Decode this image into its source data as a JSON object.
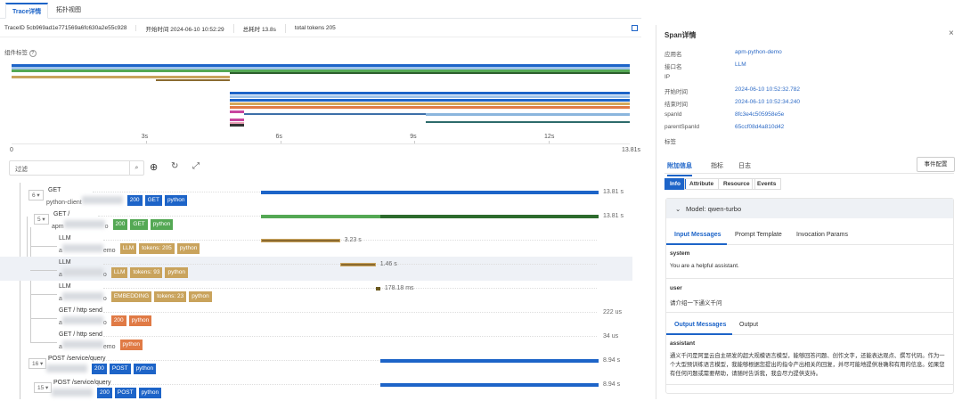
{
  "tabs": [
    "Trace详情",
    "拓扑视图"
  ],
  "info": {
    "trace_id": "TraceID 5cb969ad1e771569a6fc630a2e55c928",
    "start": "开始时间 2024-06-10 10:52:29",
    "total": "总耗时 13.8s",
    "tokens": "total tokens 205"
  },
  "minimap_label": "组件标签",
  "total_seconds": 13.81,
  "minimap": [
    {
      "s": 0,
      "e": 13.81,
      "c": "#1d64c8"
    },
    {
      "s": 0,
      "e": 13.81,
      "c": "#9fc3ea"
    },
    {
      "s": 0,
      "e": 13.81,
      "c": "#54a854"
    },
    {
      "s": 4.88,
      "e": 13.81,
      "c": "#2d5f2d"
    },
    {
      "s": 0,
      "e": 4.88,
      "c": "#c9a35c"
    },
    {
      "s": 3.23,
      "e": 4.88,
      "c": "#8a6a30"
    },
    {
      "s": 4.88,
      "e": 13.81,
      "c": "#1d64c8"
    },
    {
      "s": 4.88,
      "e": 13.81,
      "c": "#9fc3ea"
    },
    {
      "s": 4.88,
      "e": 13.81,
      "c": "#1d64c8"
    },
    {
      "s": 4.88,
      "e": 13.81,
      "c": "#d4a95c"
    },
    {
      "s": 4.88,
      "e": 13.81,
      "c": "#e07a45"
    },
    {
      "s": 4.88,
      "e": 5.2,
      "c": "#c8459f"
    },
    {
      "s": 5.2,
      "e": 9.25,
      "c": "#3d6fa8"
    },
    {
      "s": 9.25,
      "e": 13.81,
      "c": "#8bb6dd"
    },
    {
      "s": 4.88,
      "e": 5.2,
      "c": "#c8459f"
    },
    {
      "s": 9.25,
      "e": 13.81,
      "c": "#2d6b6b"
    },
    {
      "s": 4.88,
      "e": 5.2,
      "c": "#e8a0b5"
    },
    {
      "s": 4.88,
      "e": 5.2,
      "c": "#333333"
    }
  ],
  "axis": {
    "ticks": [
      "3s",
      "6s",
      "9s",
      "12s"
    ],
    "tick_values": [
      3,
      6,
      9,
      12
    ],
    "start": "0",
    "end": "13.81s"
  },
  "filter_placeholder": "过滤",
  "spans": [
    {
      "count": "6",
      "name": "GET",
      "svc": "python-client",
      "tags": [
        {
          "t": "200",
          "c": "#1d64c8"
        },
        {
          "t": "GET",
          "c": "#1d64c8"
        },
        {
          "t": "python",
          "c": "#1d64c8"
        }
      ],
      "start": 0,
      "dur": 13.81,
      "color": "#1d64c8",
      "dur_label": "13.81 s",
      "indent": 0
    },
    {
      "count": "5",
      "name": "GET /",
      "svc": "apm",
      "svc_end": "o",
      "tags": [
        {
          "t": "200",
          "c": "#54a854"
        },
        {
          "t": "GET",
          "c": "#54a854"
        },
        {
          "t": "python",
          "c": "#54a854"
        }
      ],
      "start": 0,
      "dur": 13.81,
      "color": "#54a854",
      "dark": "#2d6b2d",
      "dark_start": 4.88,
      "dur_label": "13.81 s",
      "indent": 1
    },
    {
      "name": "LLM",
      "svc": "a",
      "svc_end": "emo",
      "tags": [
        {
          "t": "LLM",
          "c": "#c9a35c"
        },
        {
          "t": "tokens: 205",
          "c": "#c9a35c"
        },
        {
          "t": "python",
          "c": "#c9a35c"
        }
      ],
      "start": 0,
      "dur": 3.23,
      "color": "#8a6a30",
      "dur_label": "3.23 s",
      "indent": 2
    },
    {
      "name": "LLM",
      "svc": "a",
      "svc_end": "o",
      "tags": [
        {
          "t": "LLM",
          "c": "#c9a35c"
        },
        {
          "t": "tokens: 93",
          "c": "#c9a35c"
        },
        {
          "t": "python",
          "c": "#c9a35c"
        }
      ],
      "start": 3.23,
      "dur": 1.46,
      "color": "#8a6a30",
      "dur_label": "1.46 s",
      "indent": 2,
      "selected": true
    },
    {
      "name": "LLM",
      "svc": "a",
      "svc_end": "o",
      "tags": [
        {
          "t": "EMBEDDING",
          "c": "#c9a35c"
        },
        {
          "t": "tokens: 23",
          "c": "#c9a35c"
        },
        {
          "t": "python",
          "c": "#c9a35c"
        }
      ],
      "start": 4.7,
      "dur": 0.17818,
      "color": "#6b5a20",
      "dur_label": "178.18 ms",
      "indent": 2
    },
    {
      "name": "GET / http send",
      "svc": "a",
      "svc_end": "o",
      "tags": [
        {
          "t": "200",
          "c": "#e07a45"
        },
        {
          "t": "python",
          "c": "#e07a45"
        }
      ],
      "start": null,
      "dur": 0,
      "color": "#e07a45",
      "dur_label": "222 us",
      "indent": 2
    },
    {
      "name": "GET / http send",
      "svc": "a",
      "svc_end": "emo",
      "tags": [
        {
          "t": "python",
          "c": "#e07a45"
        }
      ],
      "start": null,
      "dur": 0,
      "color": "#e07a45",
      "dur_label": "34 us",
      "indent": 2
    },
    {
      "count": "16",
      "name": "POST /service/query",
      "svc": "",
      "svc_end": "",
      "tags": [
        {
          "t": "200",
          "c": "#1d64c8"
        },
        {
          "t": "POST",
          "c": "#1d64c8"
        },
        {
          "t": "python",
          "c": "#1d64c8"
        }
      ],
      "start": 4.88,
      "dur": 8.94,
      "color": "#1d64c8",
      "dur_label": "8.94 s",
      "indent": 0
    },
    {
      "count": "15",
      "name": "POST /service/query",
      "svc": "",
      "svc_end": "",
      "tags": [
        {
          "t": "200",
          "c": "#1d64c8"
        },
        {
          "t": "POST",
          "c": "#1d64c8"
        },
        {
          "t": "python",
          "c": "#1d64c8"
        }
      ],
      "start": 4.88,
      "dur": 8.94,
      "color": "#1d64c8",
      "dur_label": "8.94 s",
      "indent": 1
    }
  ],
  "panel": {
    "title": "Span详情",
    "fields": [
      {
        "l": "应用名",
        "v": "apm-python-demo"
      },
      {
        "l": "接口名",
        "v": "LLM"
      },
      {
        "l": "IP",
        "v": ""
      },
      {
        "l": "开始时间",
        "v": "2024-06-10 10:52:32.782"
      },
      {
        "l": "结束时间",
        "v": "2024-06-10 10:52:34.240"
      },
      {
        "l": "spanId",
        "v": "8fc3e4c505958e5e"
      },
      {
        "l": "parentSpanId",
        "v": "65ccf08d4a810d42"
      },
      {
        "l": "标签",
        "v": ""
      }
    ],
    "tabs": [
      "附加信息",
      "指标",
      "日志"
    ],
    "event_btn": "事件配置",
    "info_tabs": [
      "Info",
      "Attribute",
      "Resource",
      "Events"
    ],
    "model": "Model: qwen-turbo",
    "input_tabs": [
      "Input Messages",
      "Prompt Template",
      "Invocation Params"
    ],
    "system_role": "system",
    "system_msg": "You are a helpful assistant.",
    "user_role": "user",
    "user_msg": "请介绍一下通义千问",
    "output_tabs": [
      "Output Messages",
      "Output"
    ],
    "assistant_role": "assistant",
    "assistant_msg": "通义千问是阿里云自主研发的超大规模语言模型，能够回答问题、创作文字，还能表达观点、撰写代码。作为一个大型预训练语言模型，我能够根据您提出的指令产出相关的回复，并尽可能地提供准确和有用的信息。如果您有任何问题或需要帮助，请随时告诉我，我会尽力提供支持。"
  }
}
